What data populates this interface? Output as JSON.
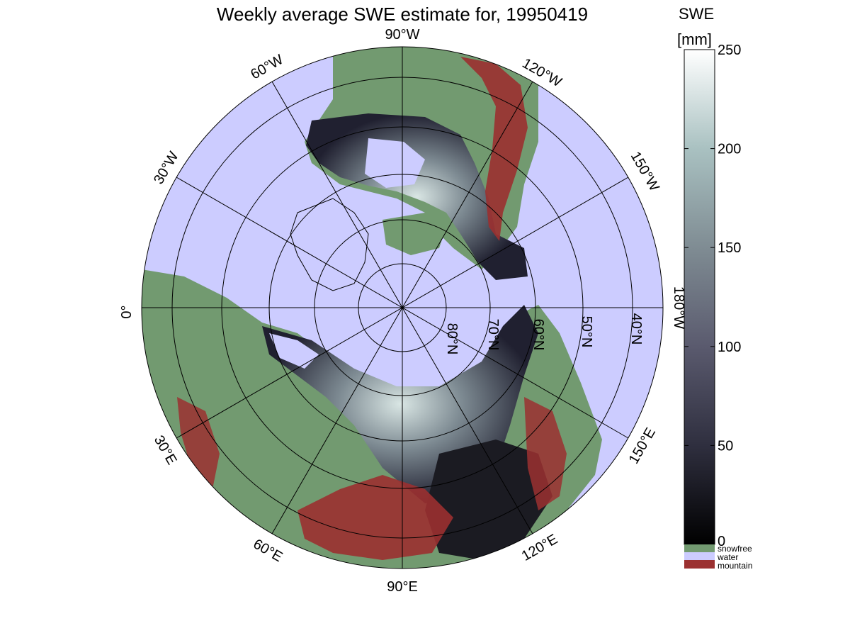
{
  "title": "Weekly average SWE estimate for, 19950419",
  "colorbar": {
    "title_line1": "SWE",
    "title_line2": "[mm]",
    "ticks": [
      "250",
      "200",
      "150",
      "100",
      "50",
      "0"
    ],
    "gradient_stops": [
      "#000000",
      "#2f2f3f",
      "#5a5a6e",
      "#7f8c93",
      "#a9c1c1",
      "#ffffff"
    ],
    "range": [
      0,
      250
    ]
  },
  "legend": [
    {
      "label": "snowfree",
      "color": "#729a70"
    },
    {
      "label": "water",
      "color": "#ccccff"
    },
    {
      "label": "mountain",
      "color": "#9b3030"
    }
  ],
  "map": {
    "projection": "north-polar-stereographic",
    "ocean_color": "#ccccff",
    "land_color": "#729a70",
    "mountain_color": "#9b3030",
    "longitude_labels": {
      "lon_90w": "90°W",
      "lon_60w": "60°W",
      "lon_30w": "30°W",
      "lon_0": "0°",
      "lon_30e": "30°E",
      "lon_60e": "60°E",
      "lon_90e": "90°E",
      "lon_120e": "120°E",
      "lon_150e": "150°E",
      "lon_180": "180°W",
      "lon_150w": "150°W",
      "lon_120w": "120°W"
    },
    "latitude_labels": {
      "lat_80": "80°N",
      "lat_70": "70°N",
      "lat_60": "60°N",
      "lat_50": "50°N",
      "lat_40": "40°N"
    }
  }
}
